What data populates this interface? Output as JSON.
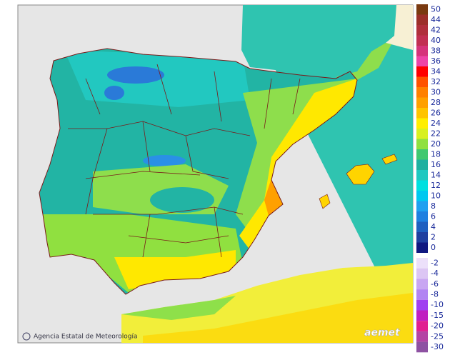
{
  "credit": "Agencia Estatal de Meteorología",
  "logo": "aemet",
  "legend": {
    "items": [
      {
        "value": 50,
        "color": "#7a3a10"
      },
      {
        "value": 44,
        "color": "#9c2f2a"
      },
      {
        "value": 42,
        "color": "#b02f3c"
      },
      {
        "value": 40,
        "color": "#c22f52"
      },
      {
        "value": 38,
        "color": "#d6337a"
      },
      {
        "value": 36,
        "color": "#ee44a8"
      },
      {
        "value": 34,
        "color": "#ff0000"
      },
      {
        "value": 32,
        "color": "#ff5200"
      },
      {
        "value": 30,
        "color": "#ff8000"
      },
      {
        "value": 28,
        "color": "#ffa000"
      },
      {
        "value": 26,
        "color": "#ffc400"
      },
      {
        "value": 24,
        "color": "#ffee00"
      },
      {
        "value": 22,
        "color": "#d8f020"
      },
      {
        "value": 20,
        "color": "#90e040"
      },
      {
        "value": 18,
        "color": "#40c870"
      },
      {
        "value": 16,
        "color": "#20b0a0"
      },
      {
        "value": 14,
        "color": "#20c8c0"
      },
      {
        "value": 12,
        "color": "#00e0e0"
      },
      {
        "value": 10,
        "color": "#00c8f0"
      },
      {
        "value": 8,
        "color": "#20a0f0"
      },
      {
        "value": 6,
        "color": "#2080e0"
      },
      {
        "value": 4,
        "color": "#2060c0"
      },
      {
        "value": 2,
        "color": "#2040a0"
      },
      {
        "value": 0,
        "color": "#101880"
      },
      {
        "value": -2,
        "color": "#ece0fa"
      },
      {
        "value": -4,
        "color": "#dcc6f4"
      },
      {
        "value": -6,
        "color": "#c8a6f2"
      },
      {
        "value": -8,
        "color": "#b284f2"
      },
      {
        "value": -10,
        "color": "#a040f0"
      },
      {
        "value": -15,
        "color": "#c020c0"
      },
      {
        "value": -20,
        "color": "#e02090"
      },
      {
        "value": -25,
        "color": "#b444a4"
      },
      {
        "value": -30,
        "color": "#8e52a2"
      }
    ]
  }
}
